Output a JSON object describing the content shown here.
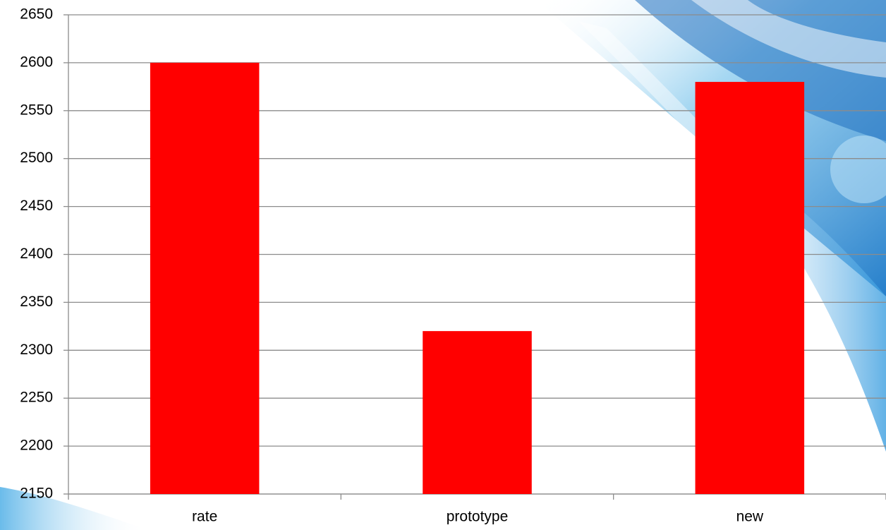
{
  "chart_data": {
    "type": "bar",
    "categories": [
      "rate",
      "prototype",
      "new"
    ],
    "values": [
      2600,
      2320,
      2580
    ],
    "color": "#ff0000",
    "ylim": [
      2150,
      2650
    ],
    "yticks": [
      2150,
      2200,
      2250,
      2300,
      2350,
      2400,
      2450,
      2500,
      2550,
      2600,
      2650
    ],
    "grid": true
  }
}
